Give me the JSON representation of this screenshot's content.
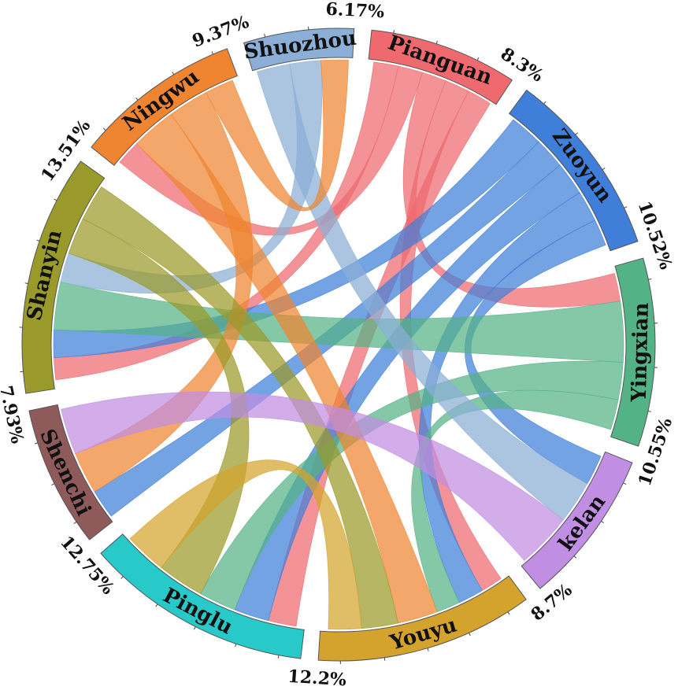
{
  "chart_data": {
    "type": "chord",
    "segments": [
      {
        "name": "Pianguan",
        "percent": "8.3%",
        "value": 8.3,
        "color": "#ef6a6f"
      },
      {
        "name": "Zuoyun",
        "percent": "10.52%",
        "value": 10.52,
        "color": "#3f7fd9"
      },
      {
        "name": "Yingxian",
        "percent": "10.55%",
        "value": 10.55,
        "color": "#54b386"
      },
      {
        "name": "kelan",
        "percent": "8.7%",
        "value": 8.7,
        "color": "#c08ee2"
      },
      {
        "name": "Youyu",
        "percent": "12.2%",
        "value": 12.2,
        "color": "#d4a32d"
      },
      {
        "name": "Pinglu",
        "percent": "12.75%",
        "value": 12.75,
        "color": "#27c9c9"
      },
      {
        "name": "Shenchi",
        "percent": "7.93%",
        "value": 7.93,
        "color": "#8e5a5a"
      },
      {
        "name": "Shanyin",
        "percent": "13.51%",
        "value": 13.51,
        "color": "#9a9a2a"
      },
      {
        "name": "Ningwu",
        "percent": "9.37%",
        "value": 9.37,
        "color": "#ef8530"
      },
      {
        "name": "Shuozhou",
        "percent": "6.17%",
        "value": 6.17,
        "color": "#8bafd6"
      }
    ],
    "links": [
      {
        "source": "Pianguan",
        "target": "Shanyin",
        "value": 1.2
      },
      {
        "source": "Pianguan",
        "target": "Ningwu",
        "value": 1.2
      },
      {
        "source": "Pianguan",
        "target": "Yingxian",
        "value": 1.2
      },
      {
        "source": "Pianguan",
        "target": "Youyu",
        "value": 1.2
      },
      {
        "source": "Pianguan",
        "target": "Pinglu",
        "value": 1.2
      },
      {
        "source": "Zuoyun",
        "target": "Shanyin",
        "value": 1.5
      },
      {
        "source": "Zuoyun",
        "target": "Shenchi",
        "value": 1.4
      },
      {
        "source": "Zuoyun",
        "target": "Pinglu",
        "value": 1.5
      },
      {
        "source": "Zuoyun",
        "target": "Youyu",
        "value": 1.4
      },
      {
        "source": "Zuoyun",
        "target": "kelan",
        "value": 1.2
      },
      {
        "source": "Yingxian",
        "target": "Shanyin",
        "value": 2.6
      },
      {
        "source": "Yingxian",
        "target": "Pinglu",
        "value": 1.6
      },
      {
        "source": "Yingxian",
        "target": "Youyu",
        "value": 1.3
      },
      {
        "source": "Shuozhou",
        "target": "kelan",
        "value": 1.7
      },
      {
        "source": "Shuozhou",
        "target": "Shanyin",
        "value": 1.6
      },
      {
        "source": "Ningwu",
        "target": "Youyu",
        "value": 2.2
      },
      {
        "source": "Ningwu",
        "target": "Shenchi",
        "value": 2.0
      },
      {
        "source": "Ningwu",
        "target": "Shuozhou",
        "value": 1.4
      },
      {
        "source": "Shanyin",
        "target": "Pinglu",
        "value": 2.0
      },
      {
        "source": "Shanyin",
        "target": "Youyu",
        "value": 2.0
      },
      {
        "source": "kelan",
        "target": "Shenchi",
        "value": 2.2
      },
      {
        "source": "Youyu",
        "target": "Pinglu",
        "value": 1.8
      }
    ]
  }
}
